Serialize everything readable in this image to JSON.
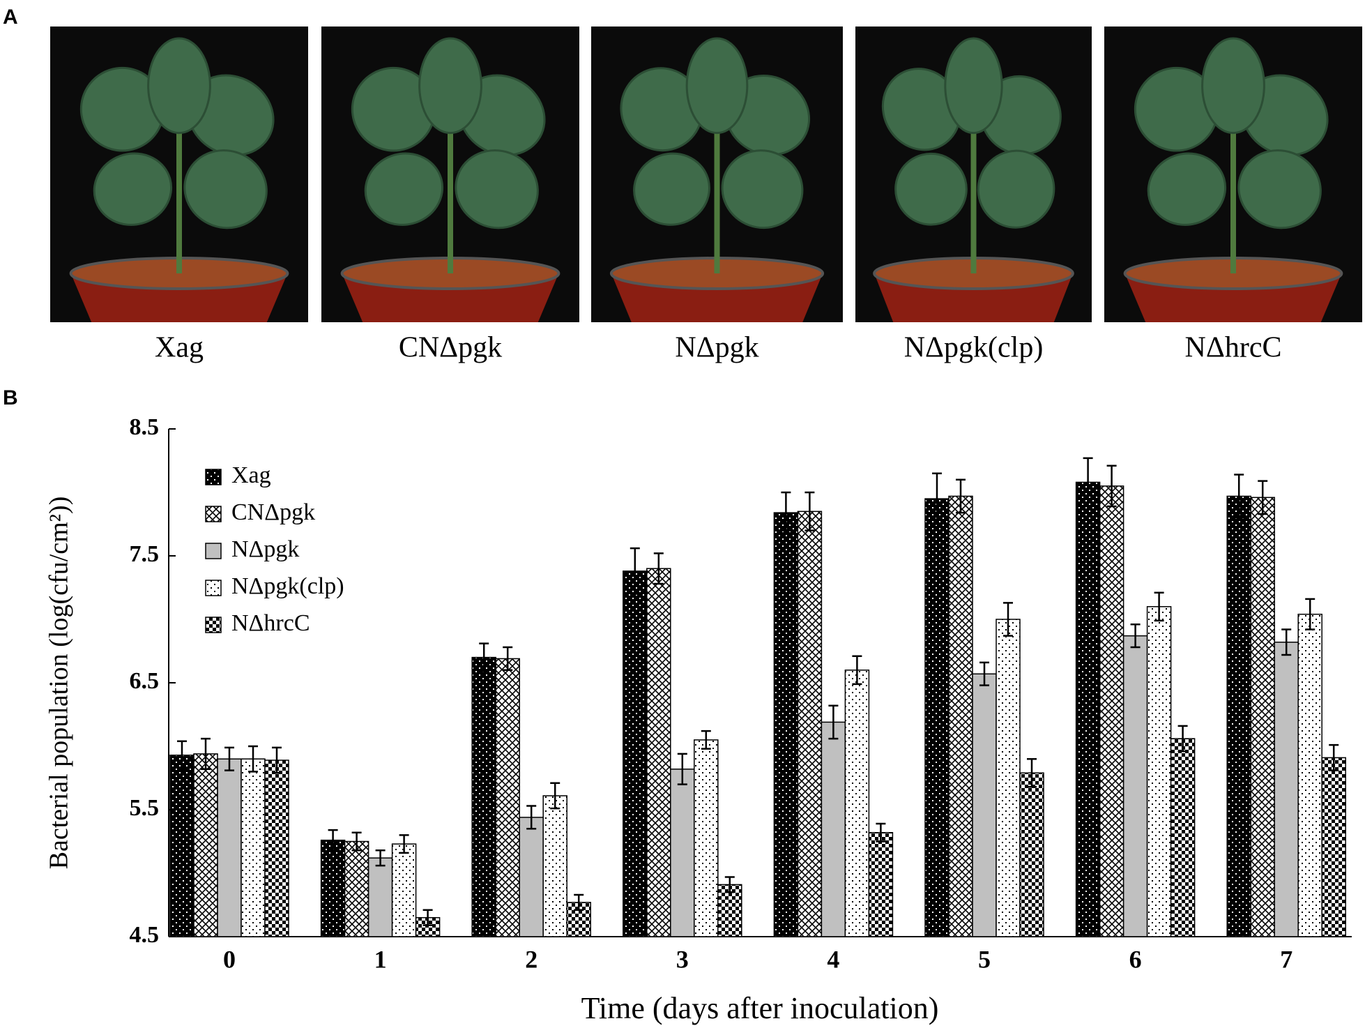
{
  "panel_a": {
    "label": "A",
    "photos": [
      "Xag",
      "CNΔpgk",
      "NΔpgk",
      "NΔpgk(clp)",
      "NΔhrcC"
    ]
  },
  "chart_data": {
    "type": "bar",
    "panel_label": "B",
    "y_label": "Bacterial population (log(cfu/cm²))",
    "x_label": "Time (days after inoculation)",
    "categories": [
      "0",
      "1",
      "2",
      "3",
      "4",
      "5",
      "6",
      "7"
    ],
    "ylim": [
      4.5,
      8.5
    ],
    "yticks": [
      4.5,
      5.5,
      6.5,
      7.5,
      8.5
    ],
    "grid": false,
    "legend": "upper left",
    "series": [
      {
        "name": "Xag",
        "color": "#000000",
        "pattern": "dots-white",
        "values": [
          5.93,
          5.26,
          6.7,
          7.38,
          7.84,
          7.95,
          8.08,
          7.97
        ],
        "errors": [
          0.11,
          0.08,
          0.11,
          0.18,
          0.16,
          0.2,
          0.19,
          0.17
        ]
      },
      {
        "name": "CNΔpgk",
        "color": "#ffffff",
        "pattern": "crosshatch",
        "values": [
          5.94,
          5.25,
          6.69,
          7.4,
          7.85,
          7.97,
          8.05,
          7.96
        ],
        "errors": [
          0.12,
          0.07,
          0.09,
          0.12,
          0.15,
          0.13,
          0.16,
          0.13
        ]
      },
      {
        "name": "NΔpgk",
        "color": "#c0c0c0",
        "pattern": "solid",
        "values": [
          5.9,
          5.12,
          5.44,
          5.82,
          6.19,
          6.57,
          6.87,
          6.82
        ],
        "errors": [
          0.09,
          0.06,
          0.09,
          0.12,
          0.13,
          0.09,
          0.09,
          0.1
        ]
      },
      {
        "name": "NΔpgk(clp)",
        "color": "#ffffff",
        "pattern": "dots-black",
        "values": [
          5.9,
          5.23,
          5.61,
          6.05,
          6.6,
          7.0,
          7.1,
          7.04
        ],
        "errors": [
          0.1,
          0.07,
          0.1,
          0.07,
          0.11,
          0.13,
          0.11,
          0.12
        ]
      },
      {
        "name": "NΔhrcC",
        "color": "#000000",
        "pattern": "checker",
        "values": [
          5.89,
          4.65,
          4.77,
          4.91,
          5.32,
          5.79,
          6.06,
          5.91
        ],
        "errors": [
          0.1,
          0.06,
          0.06,
          0.06,
          0.07,
          0.11,
          0.1,
          0.1
        ]
      }
    ]
  }
}
